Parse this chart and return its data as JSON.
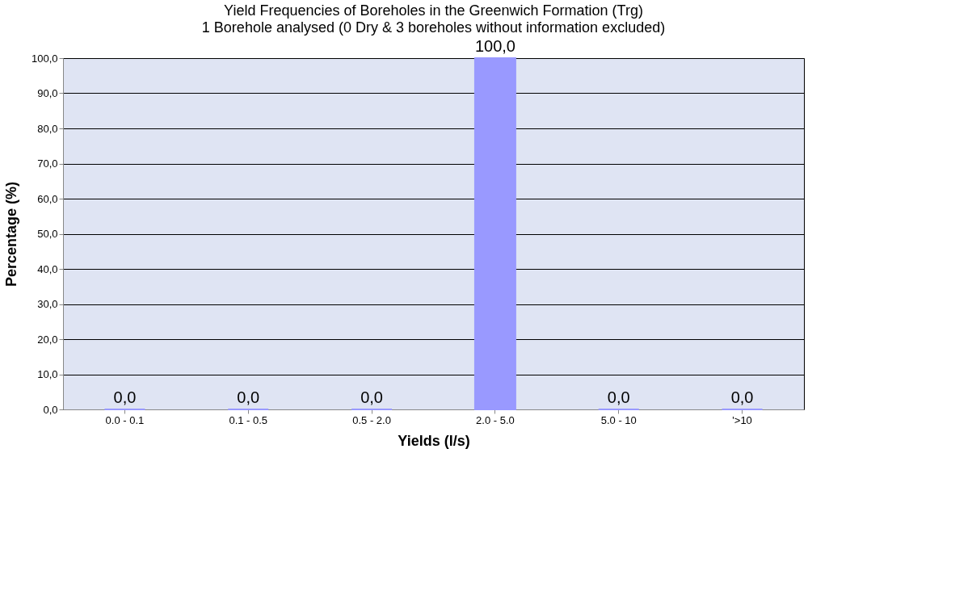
{
  "chart_data": {
    "type": "bar",
    "title": "Yield Frequencies of Boreholes in the Greenwich Formation (Trg)",
    "subtitle": "1 Borehole analysed (0 Dry & 3 boreholes without information excluded)",
    "xlabel": "Yields (l/s)",
    "ylabel": "Percentage (%)",
    "categories": [
      "0.0 - 0.1",
      "0.1 - 0.5",
      "0.5 - 2.0",
      "2.0 - 5.0",
      "5.0 - 10",
      "'>10"
    ],
    "values": [
      0,
      0,
      0,
      100,
      0,
      0
    ],
    "color": "#9999ff",
    "value_labels": [
      "0,0",
      "0,0",
      "0,0",
      "100,0",
      "0,0",
      "0,0"
    ],
    "ylim": [
      0,
      100
    ],
    "yticks": [
      {
        "value": 0,
        "label": "0,0"
      },
      {
        "value": 10,
        "label": "10,0"
      },
      {
        "value": 20,
        "label": "20,0"
      },
      {
        "value": 30,
        "label": "30,0"
      },
      {
        "value": 40,
        "label": "40,0"
      },
      {
        "value": 50,
        "label": "50,0"
      },
      {
        "value": 60,
        "label": "60,0"
      },
      {
        "value": 70,
        "label": "70,0"
      },
      {
        "value": 80,
        "label": "80,0"
      },
      {
        "value": 90,
        "label": "90,0"
      },
      {
        "value": 100,
        "label": "100,0"
      }
    ],
    "grid": "y"
  }
}
